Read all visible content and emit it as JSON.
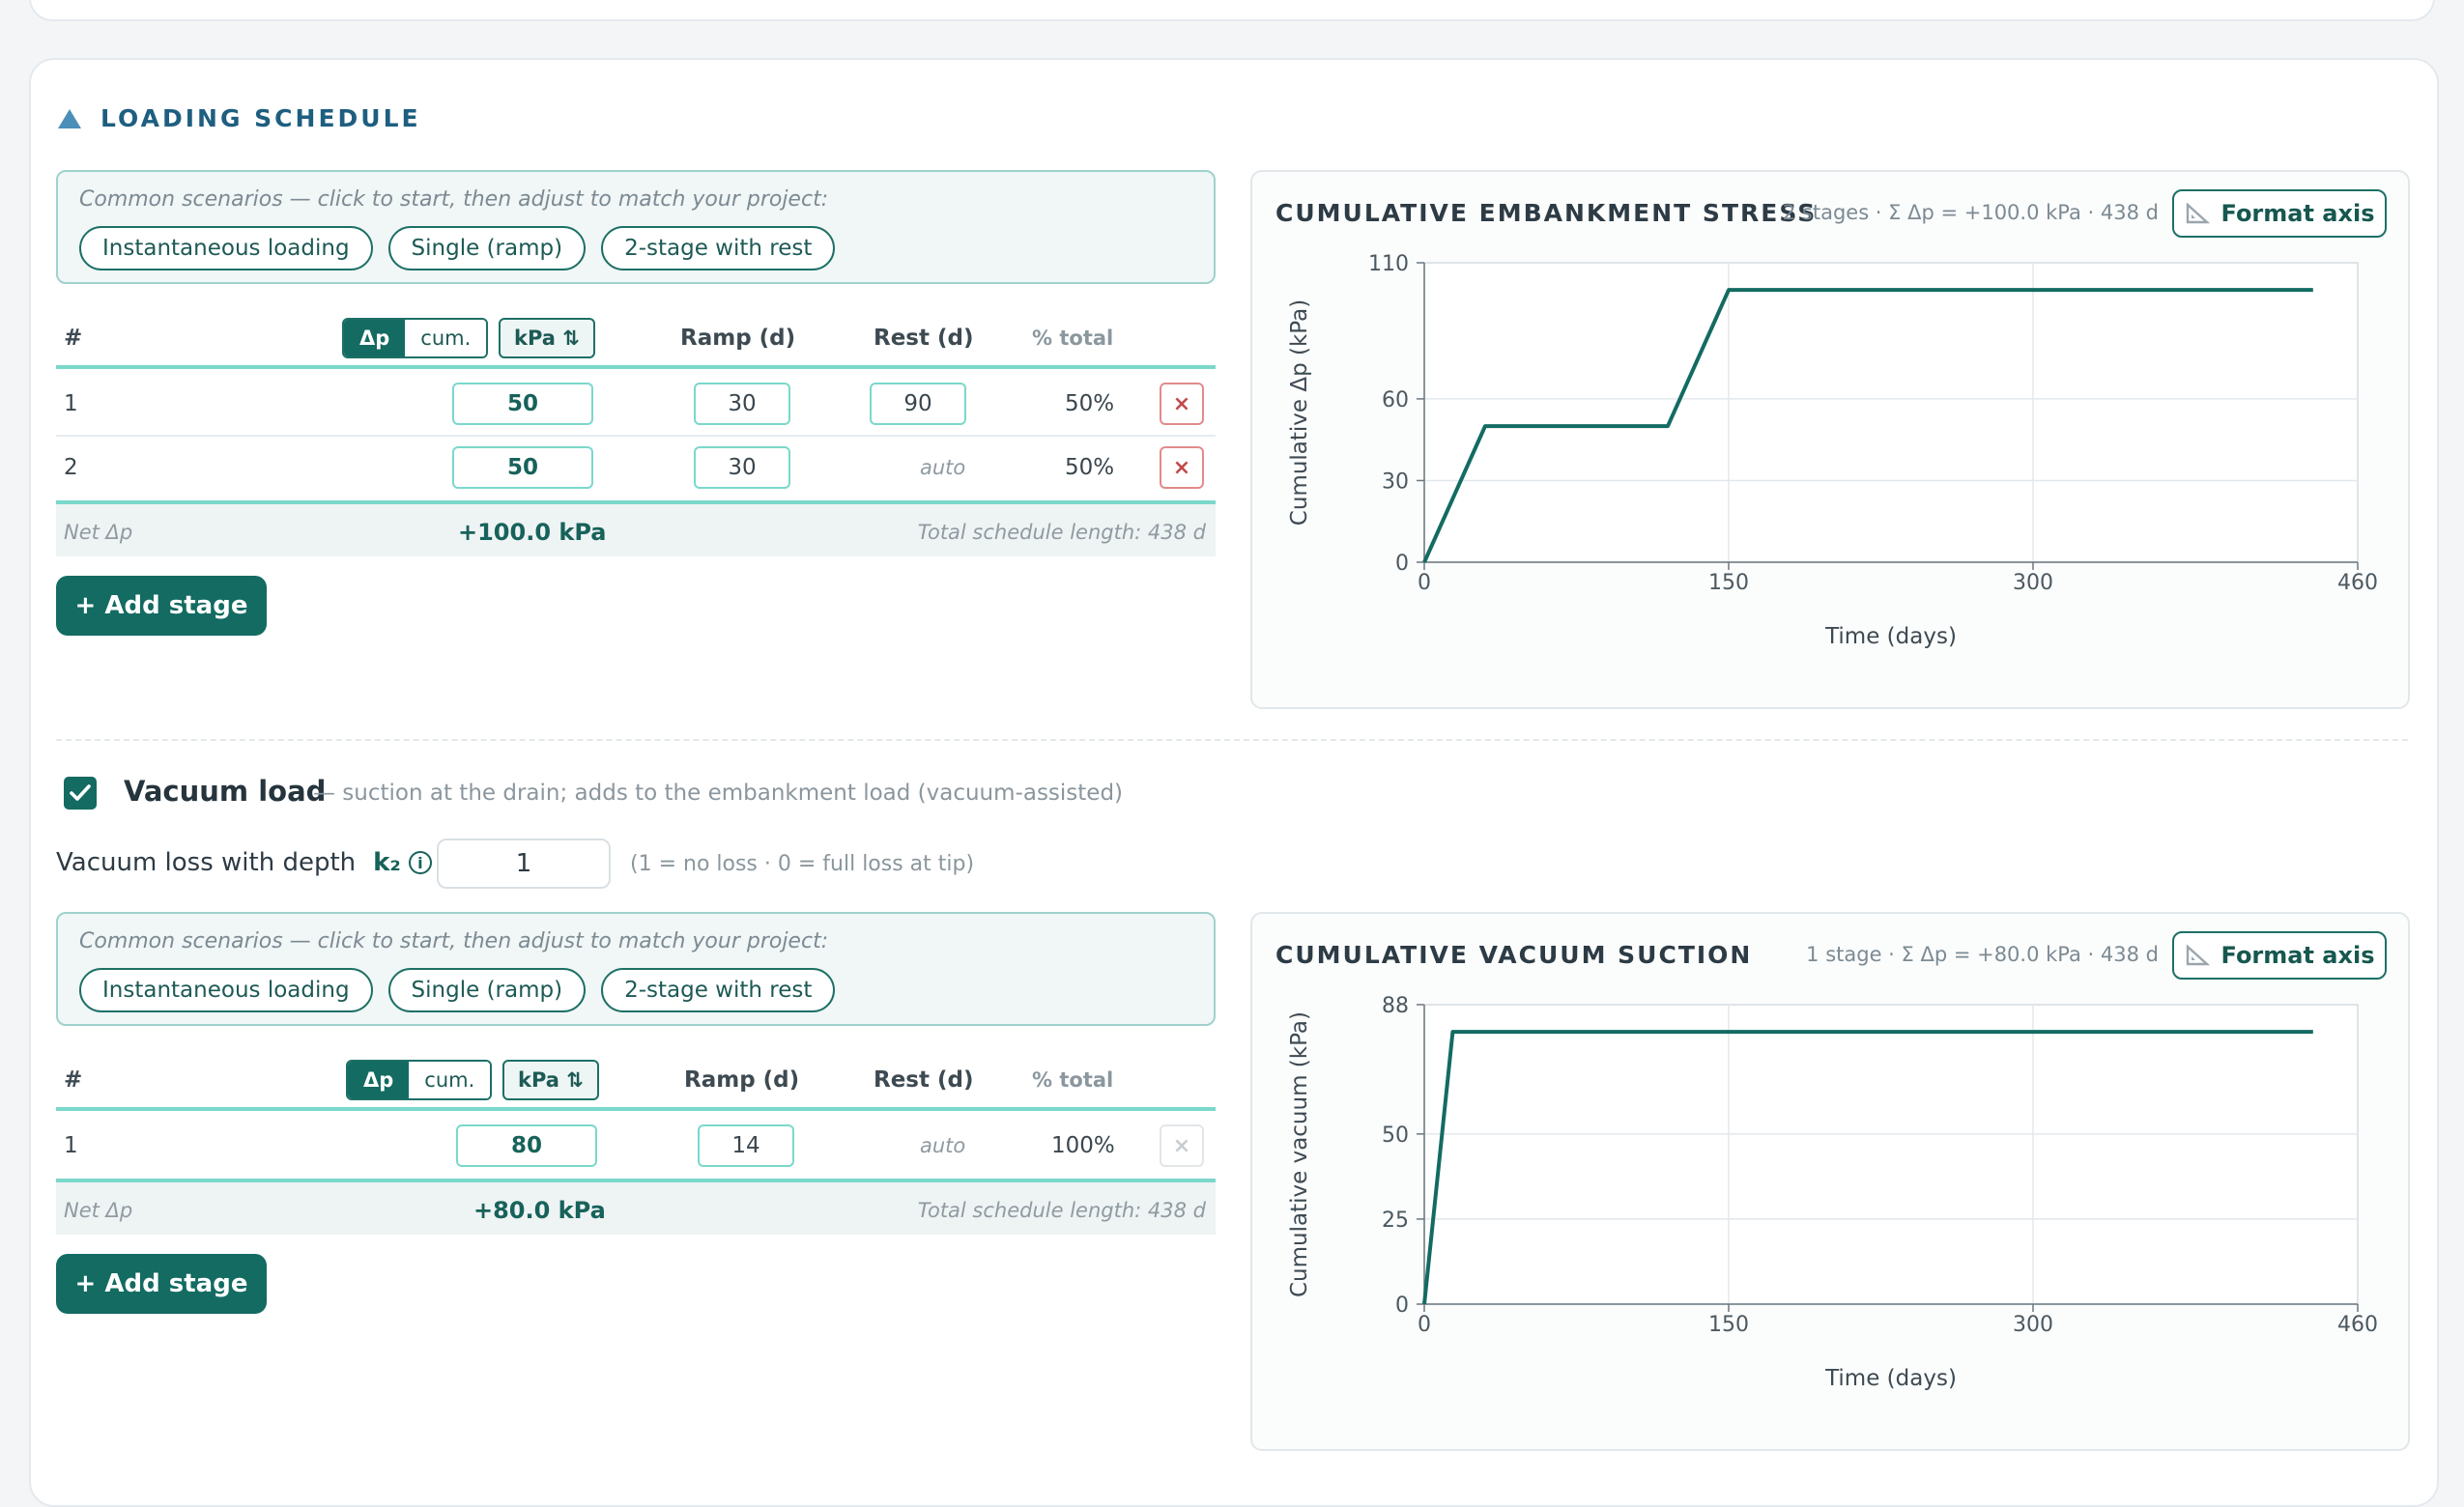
{
  "section_title": "LOADING SCHEDULE",
  "embankment": {
    "scenarios_label": "Common scenarios — click to start, then adjust to match your project:",
    "scenarios": [
      "Instantaneous loading",
      "Single (ramp)",
      "2-stage with rest"
    ],
    "headers": {
      "num": "#",
      "dp": "Δp",
      "cum": "cum.",
      "unit": "kPa ⇅",
      "ramp": "Ramp (d)",
      "rest": "Rest (d)",
      "pct": "% total"
    },
    "rows": [
      {
        "num": "1",
        "dp": "50",
        "ramp": "30",
        "rest": "90",
        "pct": "50%"
      },
      {
        "num": "2",
        "dp": "50",
        "ramp": "30",
        "rest": "auto",
        "pct": "50%"
      }
    ],
    "net_label": "Net Δp",
    "net_value": "+100.0 kPa",
    "total_length": "Total schedule length: 438 d",
    "add_stage": "+ Add stage"
  },
  "chart1": {
    "title": "CUMULATIVE EMBANKMENT STRESS",
    "subtitle": "2 stages · Σ Δp = +100.0 kPa · 438 d",
    "format_label": "Format axis",
    "chart_data": {
      "type": "line",
      "xlabel": "Time (days)",
      "ylabel": "Cumulative Δp (kPa)",
      "xlim": [
        0,
        460
      ],
      "ylim": [
        0,
        110
      ],
      "xticks": [
        "0",
        "150",
        "300",
        "460"
      ],
      "yticks": [
        "0",
        "30",
        "60",
        "110"
      ],
      "xtick_values": [
        0,
        150,
        300,
        460
      ],
      "ytick_values": [
        0,
        30,
        60,
        110
      ],
      "grid": true,
      "series": [
        {
          "x": [
            0,
            30,
            120,
            150,
            438
          ],
          "y": [
            0,
            50,
            50,
            100,
            100
          ],
          "color": "#136b62"
        }
      ]
    }
  },
  "vacuum": {
    "checkbox_label": "Vacuum load",
    "description": "— suction at the drain; adds to the embankment load (vacuum-assisted)",
    "loss_label": "Vacuum loss with depth",
    "k2_label": "k₂",
    "info_icon": "i",
    "loss_value": "1",
    "loss_hint": "(1 = no loss · 0 = full loss at tip)",
    "scenarios_label": "Common scenarios — click to start, then adjust to match your project:",
    "scenarios": [
      "Instantaneous loading",
      "Single (ramp)",
      "2-stage with rest"
    ],
    "headers": {
      "num": "#",
      "dp": "Δp",
      "cum": "cum.",
      "unit": "kPa ⇅",
      "ramp": "Ramp (d)",
      "rest": "Rest (d)",
      "pct": "% total"
    },
    "rows": [
      {
        "num": "1",
        "dp": "80",
        "ramp": "14",
        "rest": "auto",
        "pct": "100%"
      }
    ],
    "net_label": "Net Δp",
    "net_value": "+80.0 kPa",
    "total_length": "Total schedule length: 438 d",
    "add_stage": "+ Add stage"
  },
  "chart2": {
    "title": "CUMULATIVE VACUUM SUCTION",
    "subtitle": "1 stage · Σ Δp = +80.0 kPa · 438 d",
    "format_label": "Format axis",
    "chart_data": {
      "type": "line",
      "xlabel": "Time (days)",
      "ylabel": "Cumulative vacuum (kPa)",
      "xlim": [
        0,
        460
      ],
      "ylim": [
        0,
        88
      ],
      "xticks": [
        "0",
        "150",
        "300",
        "460"
      ],
      "yticks": [
        "0",
        "25",
        "50",
        "88"
      ],
      "xtick_values": [
        0,
        150,
        300,
        460
      ],
      "ytick_values": [
        0,
        25,
        50,
        88
      ],
      "grid": true,
      "series": [
        {
          "x": [
            0,
            14,
            438
          ],
          "y": [
            0,
            80,
            80
          ],
          "color": "#136b62"
        }
      ]
    }
  },
  "close_icon": "×",
  "colors": {
    "accent": "#136b62",
    "border": "#7ad8cb",
    "danger": "#c24b4b"
  }
}
